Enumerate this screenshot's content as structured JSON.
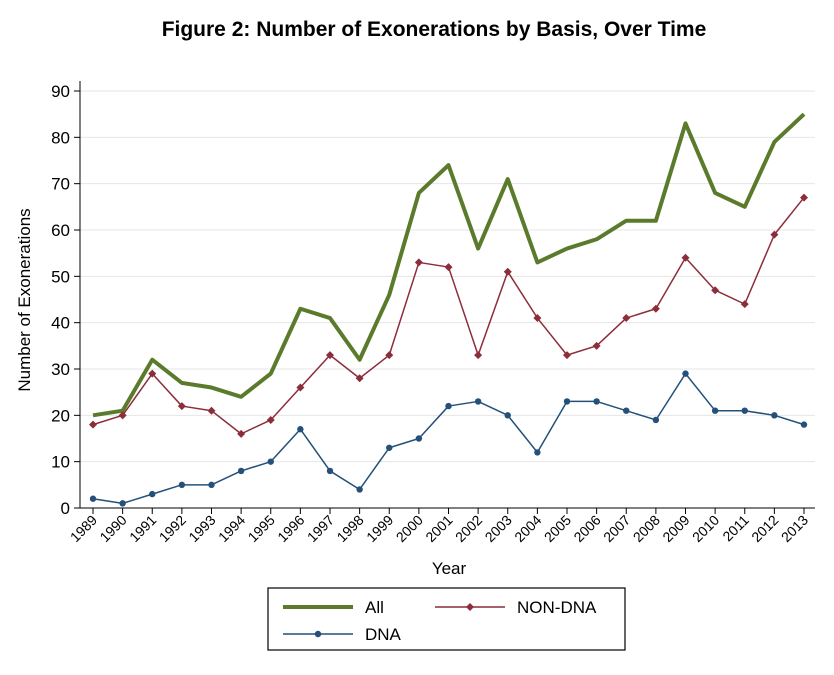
{
  "chart_data": {
    "type": "line",
    "title": "Figure 2:  Number of Exonerations by Basis, Over Time",
    "xlabel": "Year",
    "ylabel": "Number of Exonerations",
    "ylim": [
      0,
      90
    ],
    "yticks": [
      0,
      10,
      20,
      30,
      40,
      50,
      60,
      70,
      80,
      90
    ],
    "x": [
      1989,
      1990,
      1991,
      1992,
      1993,
      1994,
      1995,
      1996,
      1997,
      1998,
      1999,
      2000,
      2001,
      2002,
      2003,
      2004,
      2005,
      2006,
      2007,
      2008,
      2009,
      2010,
      2011,
      2012,
      2013
    ],
    "grid": "horizontal",
    "legend_position": "bottom",
    "series": [
      {
        "name": "All",
        "color": "#5b7b2c",
        "marker": "none",
        "values": [
          20,
          21,
          32,
          27,
          26,
          24,
          29,
          43,
          41,
          32,
          46,
          68,
          74,
          56,
          71,
          53,
          56,
          58,
          62,
          62,
          83,
          68,
          65,
          79,
          85
        ]
      },
      {
        "name": "NON-DNA",
        "color": "#8c2d3a",
        "marker": "diamond",
        "values": [
          18,
          20,
          29,
          22,
          21,
          16,
          19,
          26,
          33,
          28,
          33,
          53,
          52,
          33,
          51,
          41,
          33,
          35,
          41,
          43,
          54,
          47,
          44,
          59,
          67
        ]
      },
      {
        "name": "DNA",
        "color": "#24507a",
        "marker": "circle",
        "values": [
          2,
          1,
          3,
          5,
          5,
          8,
          10,
          17,
          8,
          4,
          13,
          15,
          22,
          23,
          20,
          12,
          23,
          23,
          21,
          19,
          29,
          21,
          21,
          20,
          18
        ]
      }
    ]
  }
}
